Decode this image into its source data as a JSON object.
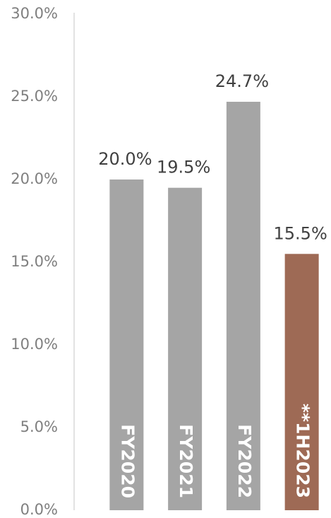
{
  "chart_data": {
    "type": "bar",
    "categories": [
      "FY2020",
      "FY2021",
      "FY2022",
      "**1H2023"
    ],
    "values": [
      20.0,
      19.5,
      24.7,
      15.5
    ],
    "value_labels": [
      "20.0%",
      "19.5%",
      "24.7%",
      "15.5%"
    ],
    "colors": [
      "#a5a5a5",
      "#a5a5a5",
      "#a5a5a5",
      "#9e6a55"
    ],
    "ylim": [
      0,
      30
    ],
    "yticks": [
      {
        "value": 0,
        "label": "0.0%"
      },
      {
        "value": 5,
        "label": "5.0%"
      },
      {
        "value": 10,
        "label": "10.0%"
      },
      {
        "value": 15,
        "label": "15.0%"
      },
      {
        "value": 20,
        "label": "20.0%"
      },
      {
        "value": 25,
        "label": "25.0%"
      },
      {
        "value": 30,
        "label": "30.0%"
      }
    ],
    "grid": false
  }
}
